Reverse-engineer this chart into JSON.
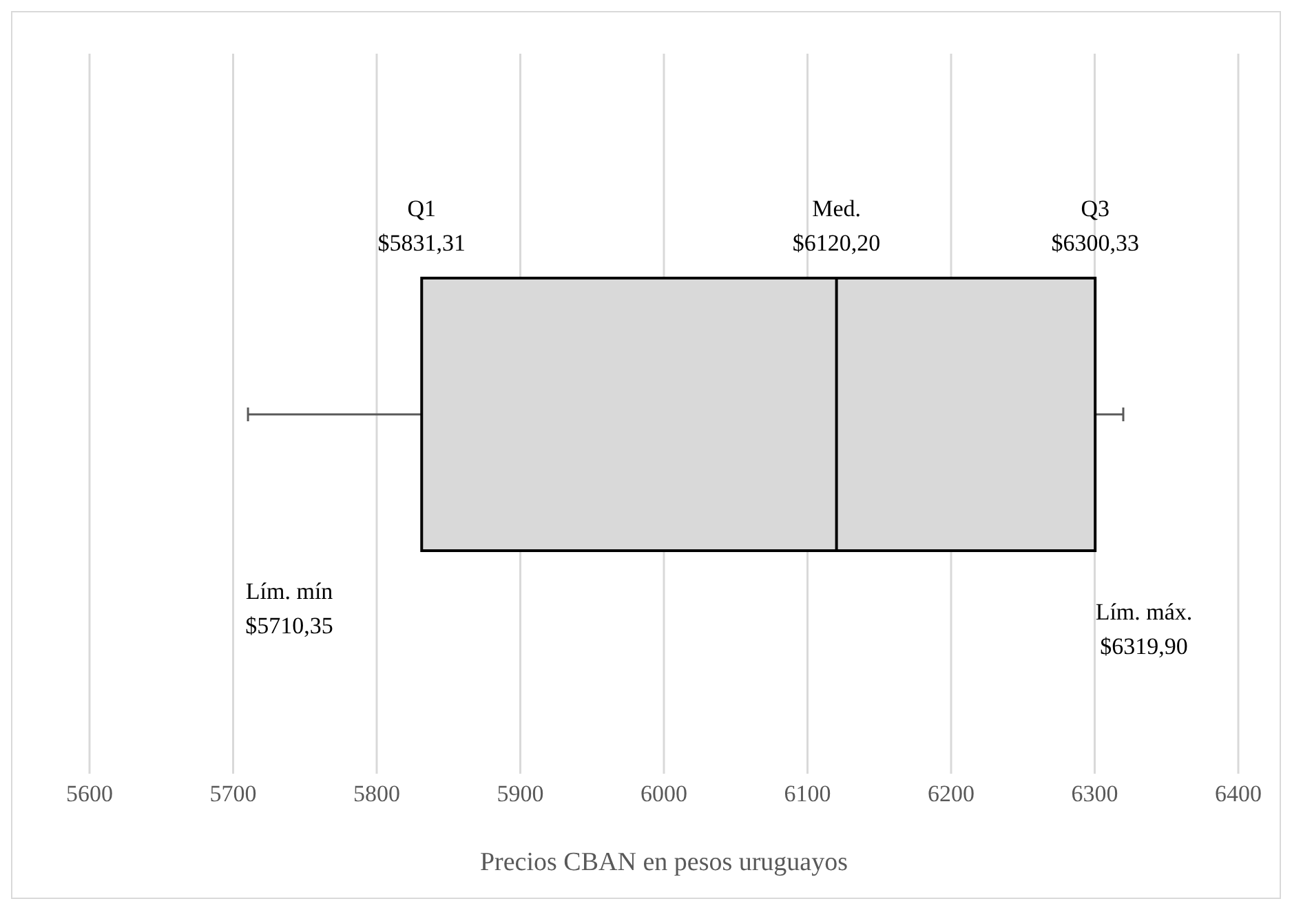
{
  "chart_data": {
    "type": "box",
    "orientation": "horizontal",
    "xlabel": "Precios CBAN en pesos uruguayos",
    "categories": [
      null
    ],
    "boxes": [
      {
        "low": 5710.35,
        "q1": 5831.31,
        "median": 6120.2,
        "q3": 6300.33,
        "high": 6319.9
      }
    ],
    "color": "#d9d9d9",
    "xlim": [
      5600,
      6400
    ],
    "xticks": [
      5600,
      5700,
      5800,
      5900,
      6000,
      6100,
      6200,
      6300,
      6400
    ],
    "grid": "x",
    "annotations": [
      "Q1\n$5831,31",
      "Med.\n$6120,20",
      "Q3\n$6300,33",
      "Lím. mín\n$5710,35",
      "Lím. máx.\n$6319,90"
    ]
  }
}
